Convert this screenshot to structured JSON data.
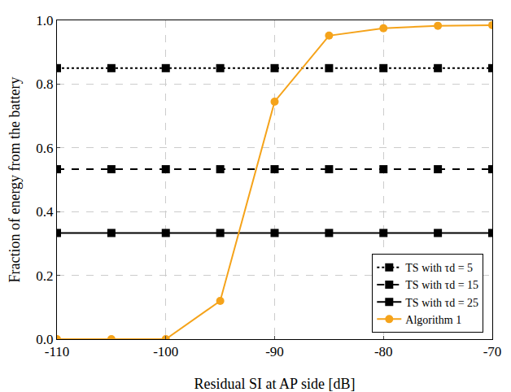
{
  "chart_data": {
    "type": "line",
    "x_label": "Residual SI at AP side [dB]",
    "y_label": "Fraction of energy from the battery",
    "x": [
      -110,
      -105,
      -100,
      -95,
      -90,
      -85,
      -80,
      -75,
      -70
    ],
    "series": [
      {
        "name": "TS with τd = 5",
        "color": "#000000",
        "marker": "square",
        "line_style": "dotted",
        "values": [
          0.85,
          0.85,
          0.85,
          0.85,
          0.85,
          0.85,
          0.85,
          0.85,
          0.85
        ]
      },
      {
        "name": "TS with τd = 15",
        "color": "#000000",
        "marker": "square",
        "line_style": "dashed",
        "values": [
          0.533,
          0.533,
          0.533,
          0.533,
          0.533,
          0.533,
          0.533,
          0.533,
          0.533
        ]
      },
      {
        "name": "TS with τd = 25",
        "color": "#000000",
        "marker": "square",
        "line_style": "solid",
        "values": [
          0.333,
          0.333,
          0.333,
          0.333,
          0.333,
          0.333,
          0.333,
          0.333,
          0.333
        ]
      },
      {
        "name": "Algorithm 1",
        "color": "#f5a31a",
        "marker": "circle",
        "line_style": "solid",
        "values": [
          0.0,
          0.0,
          0.0,
          0.12,
          0.745,
          0.952,
          0.975,
          0.983,
          0.985
        ]
      }
    ],
    "xlim": [
      -110,
      -70
    ],
    "xticks": [
      -110,
      -100,
      -90,
      -80,
      -70
    ],
    "ylim": [
      0,
      1
    ],
    "yticks": [
      {
        "value": 0,
        "label": "0.0"
      },
      0.2,
      0.4,
      0.6,
      0.8,
      {
        "value": 1,
        "label": "1.0"
      }
    ],
    "grid": true,
    "legend": "lower right"
  }
}
